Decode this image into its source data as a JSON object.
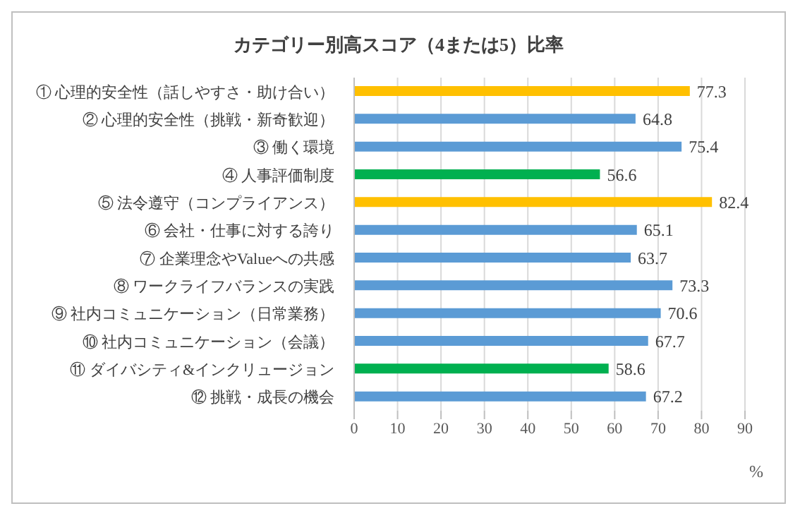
{
  "chart_data": {
    "type": "bar",
    "orientation": "horizontal",
    "title": "カテゴリー別高スコア（4または5）比率",
    "xlabel": "%",
    "categories": [
      "① 心理的安全性（話しやすさ・助け合い）",
      "② 心理的安全性（挑戦・新奇歓迎）",
      "③ 働く環境",
      "④ 人事評価制度",
      "⑤ 法令遵守（コンプライアンス）",
      "⑥ 会社・仕事に対する誇り",
      "⑦ 企業理念やValueへの共感",
      "⑧ ワークライフバランスの実践",
      "⑨ 社内コミュニケーション（日常業務）",
      "⑩ 社内コミュニケーション（会議）",
      "⑪ ダイバシティ&インクリュージョン",
      "⑫ 挑戦・成長の機会"
    ],
    "values": [
      77.3,
      64.8,
      75.4,
      56.6,
      82.4,
      65.1,
      63.7,
      73.3,
      70.6,
      67.7,
      58.6,
      67.2
    ],
    "colors": [
      "#ffc000",
      "#5b9bd5",
      "#5b9bd5",
      "#00b050",
      "#ffc000",
      "#5b9bd5",
      "#5b9bd5",
      "#5b9bd5",
      "#5b9bd5",
      "#5b9bd5",
      "#00b050",
      "#5b9bd5"
    ],
    "xlim": [
      0,
      90
    ],
    "xticks": [
      0,
      10,
      20,
      30,
      40,
      50,
      60,
      70,
      80,
      90
    ],
    "grid": "x",
    "data_labels": true
  }
}
